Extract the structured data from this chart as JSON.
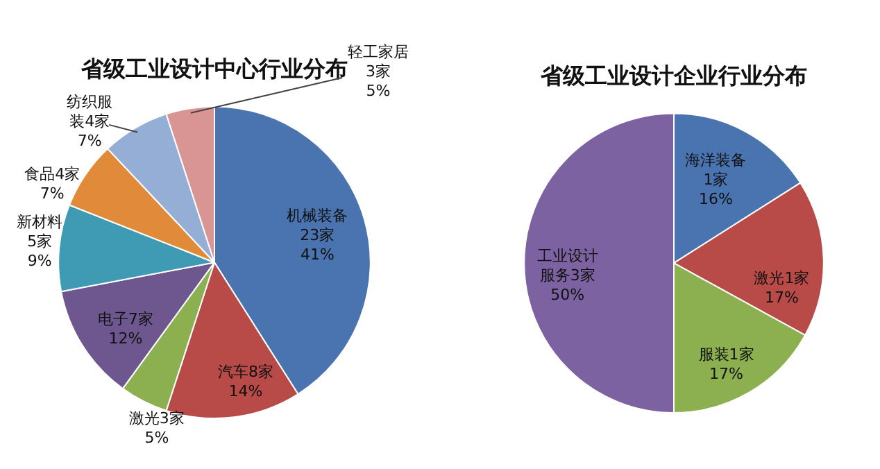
{
  "chart_data": [
    {
      "type": "pie",
      "title": "省级工业设计中心行业分布",
      "categories": [
        "机械装备23家",
        "汽车8家",
        "激光3家",
        "电子7家",
        "新材料5家",
        "食品4家",
        "纺织服装4家",
        "轻工家居3家"
      ],
      "values": [
        41,
        14,
        5,
        12,
        9,
        7,
        7,
        5
      ],
      "value_labels": [
        "41%",
        "14%",
        "5%",
        "12%",
        "9%",
        "7%",
        "7%",
        "5%"
      ],
      "colors": [
        "#4a74b0",
        "#b84a47",
        "#8caf4f",
        "#6e578f",
        "#3f9bb3",
        "#e08a3a",
        "#95aed6",
        "#d99593"
      ],
      "legend": false
    },
    {
      "type": "pie",
      "title": "省级工业设计企业行业分布",
      "categories": [
        "海洋装备1家",
        "激光1家",
        "服装1家",
        "工业设计服务3家"
      ],
      "values": [
        16,
        17,
        17,
        50
      ],
      "value_labels": [
        "16%",
        "17%",
        "17%",
        "50%"
      ],
      "colors": [
        "#4a74b0",
        "#b84a47",
        "#8caf4f",
        "#7d62a1"
      ],
      "legend": false
    }
  ]
}
